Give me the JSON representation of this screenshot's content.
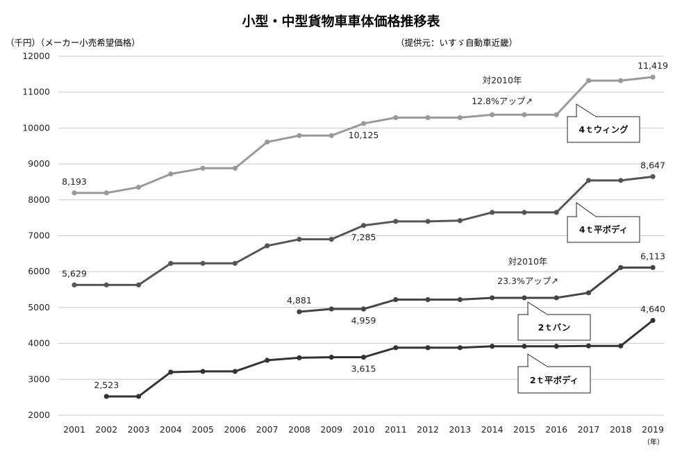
{
  "chart_data": {
    "type": "line",
    "title": "小型・中型貨物車車体価格推移表",
    "ylabel": "（千円）（メーカー小売希望価格）",
    "source": "（提供元：いすゞ自動車近畿）",
    "xlabel": "（年）",
    "ylim": [
      2000,
      12000
    ],
    "yticks": [
      2000,
      3000,
      4000,
      5000,
      6000,
      7000,
      8000,
      9000,
      10000,
      11000,
      12000
    ],
    "x": [
      "2001",
      "2002",
      "2003",
      "2004",
      "2005",
      "2006",
      "2007",
      "2008",
      "2009",
      "2010",
      "2011",
      "2012",
      "2013",
      "2014",
      "2015",
      "2016",
      "2017",
      "2018",
      "2019"
    ],
    "grid": true,
    "series": [
      {
        "name": "4ｔウィング",
        "color": "#999999",
        "values": [
          8193,
          8193,
          8350,
          8720,
          8880,
          8880,
          9610,
          9790,
          9790,
          10125,
          10290,
          10290,
          10290,
          10370,
          10370,
          10370,
          11320,
          11320,
          11419
        ]
      },
      {
        "name": "4ｔ平ボディ",
        "color": "#555555",
        "values": [
          5629,
          5629,
          5629,
          6230,
          6230,
          6230,
          6720,
          6900,
          6900,
          7285,
          7400,
          7400,
          7420,
          7650,
          7650,
          7650,
          8540,
          8540,
          8647
        ]
      },
      {
        "name": "2ｔバン",
        "color": "#444444",
        "values": [
          null,
          null,
          null,
          null,
          null,
          null,
          null,
          4881,
          4959,
          4959,
          5220,
          5220,
          5220,
          5270,
          5270,
          5270,
          5410,
          6113,
          6113
        ]
      },
      {
        "name": "2ｔ平ボディ",
        "color": "#333333",
        "values": [
          null,
          2523,
          2523,
          3200,
          3220,
          3220,
          3530,
          3600,
          3615,
          3615,
          3880,
          3880,
          3880,
          3920,
          3920,
          3920,
          3930,
          3930,
          4640
        ]
      }
    ],
    "data_labels": [
      {
        "series": 0,
        "index": 0,
        "text": "8,193"
      },
      {
        "series": 0,
        "index": 9,
        "text": "10,125"
      },
      {
        "series": 0,
        "index": 18,
        "text": "11,419"
      },
      {
        "series": 1,
        "index": 0,
        "text": "5,629"
      },
      {
        "series": 1,
        "index": 9,
        "text": "7,285"
      },
      {
        "series": 1,
        "index": 18,
        "text": "8,647"
      },
      {
        "series": 2,
        "index": 7,
        "text": "4,881"
      },
      {
        "series": 2,
        "index": 9,
        "text": "4,959"
      },
      {
        "series": 2,
        "index": 18,
        "text": "6,113"
      },
      {
        "series": 3,
        "index": 1,
        "text": "2,523"
      },
      {
        "series": 3,
        "index": 9,
        "text": "3,615"
      },
      {
        "series": 3,
        "index": 18,
        "text": "4,640"
      }
    ],
    "annotations": [
      {
        "line1": "対2010年",
        "line2": "12.8%アップ↗"
      },
      {
        "line1": "対2010年",
        "line2": "23.3%アップ↗"
      }
    ],
    "callouts": [
      "4ｔウィング",
      "4ｔ平ボディ",
      "2ｔバン",
      "2ｔ平ボディ"
    ]
  }
}
